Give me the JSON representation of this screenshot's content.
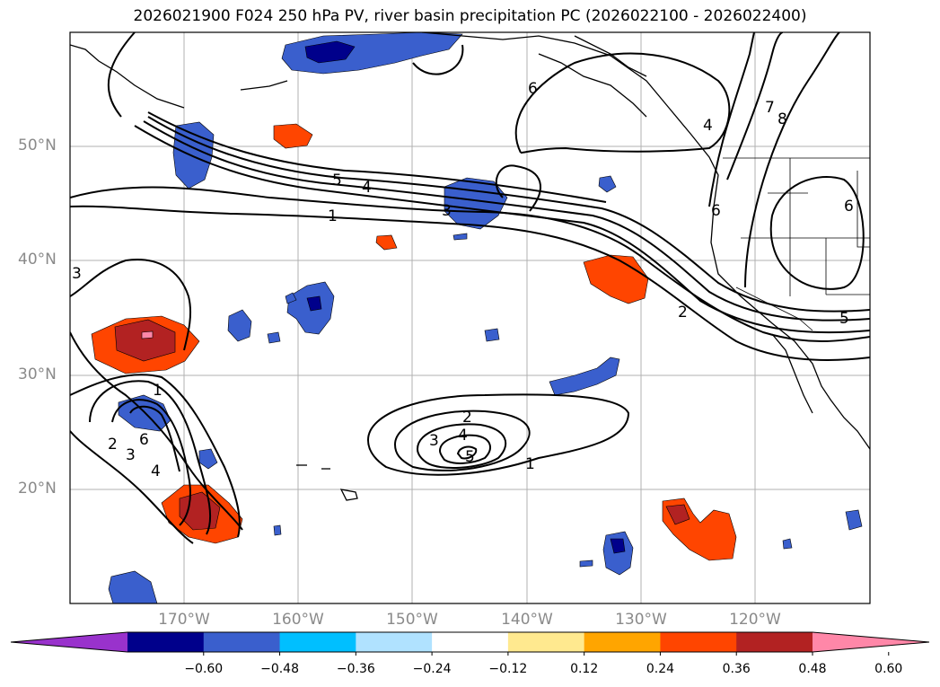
{
  "title": "2026021900 F024 250 hPa PV, river basin precipitation PC (2026022100 - 2026022400)",
  "lat_labels": [
    "50°N",
    "40°N",
    "30°N",
    "20°N"
  ],
  "lon_labels": [
    "170°W",
    "160°W",
    "150°W",
    "140°W",
    "130°W",
    "120°W"
  ],
  "contour_labels": {
    "c1": "1",
    "c2": "2",
    "c3": "3",
    "c4": "4",
    "c5": "5",
    "c6": "6",
    "c7": "7",
    "c8": "8"
  },
  "colorbar": {
    "ticks": [
      "−0.60",
      "−0.48",
      "−0.36",
      "−0.24",
      "−0.12",
      "0.12",
      "0.24",
      "0.36",
      "0.48",
      "0.60"
    ],
    "colors": [
      "#9932cc",
      "#00008b",
      "#3a5fcd",
      "#00bfff",
      "#b0e2ff",
      "#ffffff",
      "#ffe98f",
      "#ffa500",
      "#ff4500",
      "#b22222",
      "#ff87a8"
    ]
  }
}
